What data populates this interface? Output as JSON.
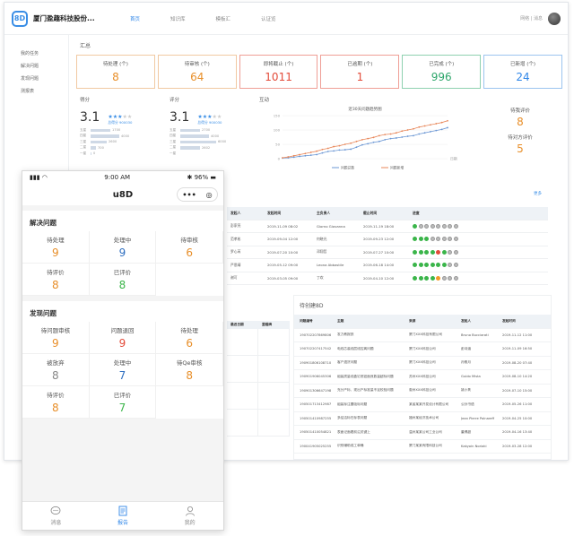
{
  "desktop": {
    "brand": "厦门盈趣科技股份...",
    "nav": [
      "首页",
      "知识库",
      "模板汇",
      "认证览"
    ],
    "user_text": "网络 | 消息",
    "sidebar": [
      "我的任务",
      "解决问题",
      "发现问题",
      "测报表"
    ],
    "summary_title": "汇总",
    "cards": [
      {
        "label": "待处理 (个)",
        "value": "8",
        "color": "#e88f2a",
        "border": "#f1c9a2"
      },
      {
        "label": "待审核 (个)",
        "value": "64",
        "color": "#e88f2a",
        "border": "#f1c9a2"
      },
      {
        "label": "即将截止 (个)",
        "value": "1011",
        "color": "#e34b3a",
        "border": "#ef9f96"
      },
      {
        "label": "已逾期 (个)",
        "value": "1",
        "color": "#e34b3a",
        "border": "#ef9f96"
      },
      {
        "label": "已完成 (个)",
        "value": "996",
        "color": "#2ea66b",
        "border": "#8fd1b0"
      },
      {
        "label": "已新增 (个)",
        "value": "24",
        "color": "#2f86e8",
        "border": "#9cc4ef"
      }
    ],
    "rating1": {
      "title": "得分",
      "score": "3.1",
      "sub": "总得分 900030",
      "bars": [
        {
          "label": "五星",
          "value": "1700",
          "w": 22
        },
        {
          "label": "四星",
          "value": "4000",
          "w": 32
        },
        {
          "label": "三星",
          "value": "2600",
          "w": 18
        },
        {
          "label": "二星",
          "value": "700",
          "w": 6
        },
        {
          "label": "一星",
          "value": "0",
          "w": 1
        }
      ]
    },
    "rating2": {
      "title": "评分",
      "score": "3.1",
      "sub": "总得分 900030",
      "bars": [
        {
          "label": "五星",
          "value": "2700",
          "w": 22
        },
        {
          "label": "四星",
          "value": "4000",
          "w": 32
        },
        {
          "label": "三星",
          "value": "6000",
          "w": 40
        },
        {
          "label": "二星",
          "value": "2602",
          "w": 22
        },
        {
          "label": "一星",
          "value": "",
          "w": 0
        }
      ]
    },
    "chart_title": "互动",
    "right_stats": [
      {
        "label": "待我评价",
        "value": "8"
      },
      {
        "label": "待对方评价",
        "value": "5"
      }
    ],
    "more_label": "更多",
    "table1": {
      "headers": [
        "发起人",
        "发起时间",
        "主负责人",
        "截止时间",
        "进度"
      ],
      "rows": [
        {
          "a": "彭家亮",
          "b": "2019-11-09 08:02",
          "c": "Giorno Giovanna",
          "d": "2019-11-19 18:00",
          "dots": [
            "g",
            "n",
            "n",
            "n",
            "n",
            "n",
            "n",
            "n"
          ]
        },
        {
          "a": "范孝彬",
          "b": "2019-09-04 12:00",
          "c": "何晓光",
          "d": "2019-09-23 12:00",
          "dots": [
            "g",
            "g",
            "g",
            "n",
            "n",
            "n",
            "n",
            "n"
          ]
        },
        {
          "a": "罗心芮",
          "b": "2019-07-20 10:00",
          "c": "邓翔哲",
          "d": "2019-07-27 10:00",
          "dots": [
            "g",
            "g",
            "g",
            "g",
            "r",
            "g",
            "n",
            "n"
          ]
        },
        {
          "a": "严思晴",
          "b": "2019-05-12 09:00",
          "c": "Leona Abbastile",
          "d": "2019-06-18 14:00",
          "dots": [
            "g",
            "g",
            "g",
            "g",
            "g",
            "g",
            "n",
            "n"
          ]
        },
        {
          "a": "谢可",
          "b": "2019-03-05 09:00",
          "c": "丁欢",
          "d": "2019-04-10 12:00",
          "dots": [
            "g",
            "g",
            "g",
            "g",
            "o",
            "n",
            "n",
            "n"
          ]
        }
      ]
    },
    "grid_headers": [
      "最迟日期",
      "里程碑"
    ],
    "table2": {
      "title": "待创建8D",
      "headers": [
        "问题编号",
        "主题",
        "来源",
        "发起人",
        "发起时间"
      ],
      "rows": [
        [
          "190702207869806",
          "发力教报铁",
          "厦门XXX科技有限公司",
          "Bruno Bucciarati",
          "2019-11-12 11:00"
        ],
        [
          "190702207417542",
          "电线芯装线层线控离问题",
          "厦门XXX科技公司",
          "彭诗涵",
          "2019-11-09 16:50"
        ],
        [
          "190901806108710",
          "客户退货问题",
          "厦门XXX科技公司",
          "孙雅月",
          "2019-08-20 07:40"
        ],
        [
          "190901906045306",
          "组装质量线盒钉底钮面良数量超标问题",
          "苏州XXX科技公司",
          "Guido Mista",
          "2019-08-10 14:20"
        ],
        [
          "190901306647198",
          "充分产标、现出产标准量不足校验问题",
          "惠州XXX科技公司",
          "姚小隽",
          "2019-07-10 15:00"
        ],
        [
          "190501713412987",
          "组装标注置吸标问题",
          "某省某某开发设计有限公司",
          "公孙书语",
          "2019-05-26 11:00"
        ],
        [
          "190501410987255",
          "多结洁标在标表问题",
          "福州某经济技术公司",
          "Jean Pierre Polnareff",
          "2019-04-25 10:00"
        ],
        [
          "190501410054821",
          "表面记面着前沿关键上",
          "温州某某公司工业公司",
          "董博超",
          "2019-04-16 13:40"
        ],
        [
          "190041905025255",
          "识别辅助成工单桶",
          "厦门某某有限科技公司",
          "Kakyoin Noriaki",
          "2019-03-28 12:00"
        ]
      ]
    }
  },
  "chart_data": {
    "type": "line",
    "title": "近30天问题趋势图",
    "x": [
      "1",
      "2",
      "3",
      "4",
      "5",
      "6",
      "7",
      "8",
      "9",
      "10",
      "11",
      "12",
      "13",
      "14",
      "15",
      "16",
      "17",
      "18",
      "19",
      "20",
      "21",
      "22",
      "23",
      "24",
      "25",
      "26",
      "27",
      "28",
      "29",
      "30"
    ],
    "ylim": [
      0,
      150
    ],
    "yticks": [
      0,
      50,
      100,
      150
    ],
    "x_end_label": "日期",
    "series": [
      {
        "name": "问题总数",
        "color": "#6b97d4",
        "values": [
          2,
          3,
          5,
          8,
          10,
          12,
          14,
          20,
          25,
          27,
          30,
          31,
          33,
          40,
          48,
          52,
          57,
          60,
          66,
          70,
          72,
          75,
          78,
          80,
          86,
          90,
          94,
          98,
          102,
          108
        ]
      },
      {
        "name": "问题新增",
        "color": "#e8875a",
        "values": [
          3,
          6,
          10,
          14,
          18,
          22,
          26,
          32,
          36,
          42,
          45,
          50,
          54,
          60,
          66,
          70,
          74,
          80,
          84,
          86,
          90,
          96,
          100,
          104,
          110,
          114,
          118,
          122,
          126,
          132
        ]
      }
    ]
  },
  "mobile": {
    "time": "9:00 AM",
    "battery": "96%",
    "title": "u8D",
    "capsule_menu": "•••",
    "capsule_close": "◎",
    "group1": {
      "title": "解决问题",
      "items": [
        {
          "label": "待处理",
          "value": "9",
          "color": "#e88f2a"
        },
        {
          "label": "处理中",
          "value": "9",
          "color": "#2f6fc0"
        },
        {
          "label": "待审核",
          "value": "6",
          "color": "#e88f2a"
        },
        {
          "label": "待评价",
          "value": "8",
          "color": "#e88f2a"
        },
        {
          "label": "已评价",
          "value": "8",
          "color": "#3bb54a"
        }
      ]
    },
    "group2": {
      "title": "发现问题",
      "items": [
        {
          "label": "待问题审核",
          "value": "9",
          "color": "#e88f2a"
        },
        {
          "label": "问题退回",
          "value": "9",
          "color": "#e34b3a"
        },
        {
          "label": "待处理",
          "value": "6",
          "color": "#e88f2a"
        },
        {
          "label": "被放弃",
          "value": "8",
          "color": "#888888"
        },
        {
          "label": "处理中",
          "value": "7",
          "color": "#2f6fc0"
        },
        {
          "label": "待Qe审核",
          "value": "8",
          "color": "#e88f2a"
        },
        {
          "label": "待评价",
          "value": "8",
          "color": "#e88f2a"
        },
        {
          "label": "已评价",
          "value": "7",
          "color": "#3bb54a"
        }
      ]
    },
    "tabs": [
      {
        "label": "消息",
        "icon": "message-icon"
      },
      {
        "label": "报告",
        "icon": "report-icon"
      },
      {
        "label": "我的",
        "icon": "profile-icon"
      }
    ]
  }
}
